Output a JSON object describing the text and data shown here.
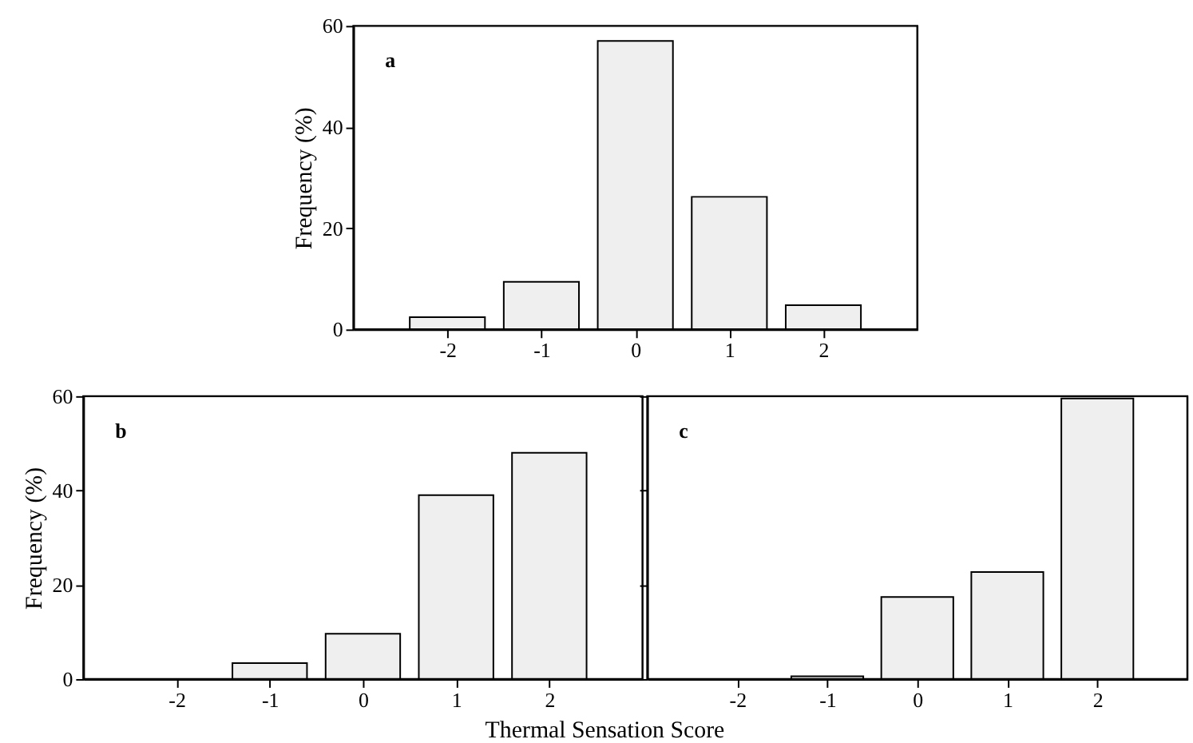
{
  "chart_data": [
    {
      "type": "bar",
      "x": [
        -2,
        -1,
        0,
        1,
        2
      ],
      "values": [
        2.4,
        9.4,
        57,
        26.2,
        4.8
      ],
      "color": "#efefef",
      "xlim": [
        -3,
        3
      ],
      "xticks": [
        -2,
        -1,
        0,
        1,
        2
      ],
      "ylim": [
        0,
        60
      ],
      "yticks": [
        0,
        20,
        40,
        60
      ],
      "ylabel": "Frequency (%)",
      "annotations": [
        "a"
      ],
      "grid": false
    },
    {
      "type": "bar",
      "x": [
        -2,
        -1,
        0,
        1,
        2
      ],
      "values": [
        0,
        3.4,
        9.6,
        39,
        48
      ],
      "color": "#efefef",
      "xlim": [
        -3,
        3
      ],
      "xticks": [
        -2,
        -1,
        0,
        1,
        2
      ],
      "ylim": [
        0,
        60
      ],
      "yticks": [
        0,
        20,
        40,
        60
      ],
      "ylabel": "Frequency (%)",
      "xlabel": "Thermal Sensation Score",
      "annotations": [
        "b"
      ],
      "grid": false
    },
    {
      "type": "bar",
      "x": [
        -2,
        -1,
        0,
        1,
        2
      ],
      "values": [
        0,
        0.6,
        17.4,
        22.7,
        59.5
      ],
      "color": "#efefef",
      "xlim": [
        -3,
        3
      ],
      "xticks": [
        -2,
        -1,
        0,
        1,
        2
      ],
      "ylim": [
        0,
        60
      ],
      "yticks": [
        0,
        20,
        40,
        60
      ],
      "tick_labels": "x",
      "annotations": [
        "c"
      ],
      "grid": false
    }
  ]
}
